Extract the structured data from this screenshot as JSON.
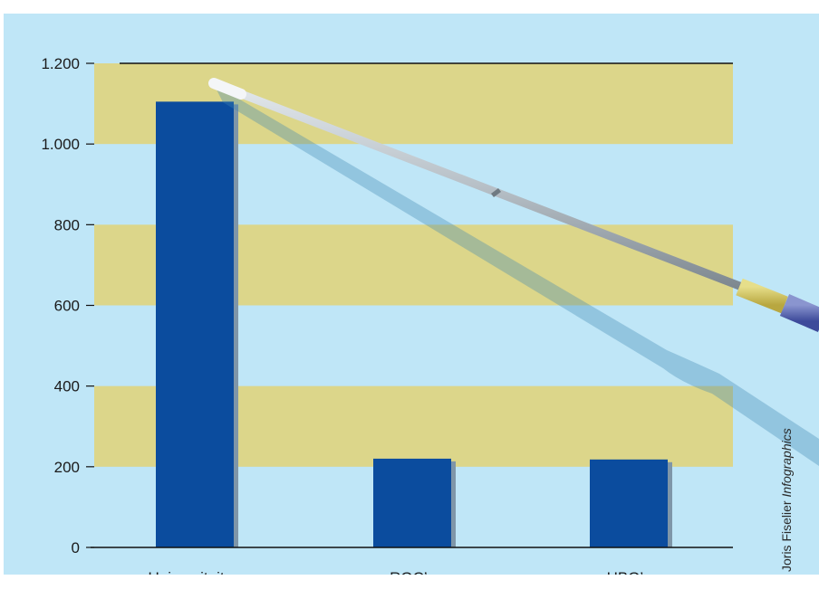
{
  "credit": {
    "author": "Joris Fiselier",
    "agency": "Infographics"
  },
  "colors": {
    "background": "#bfe6f7",
    "band": "#dcd68a",
    "bar": "#0b4c9e",
    "bar_shadow": "#7f96a8",
    "axis": "#111111"
  },
  "chart_data": {
    "type": "bar",
    "title": "",
    "xlabel": "",
    "ylabel": "",
    "categories": [
      "Universiteiten",
      "ROC’s",
      "HBO’s"
    ],
    "values": [
      1105,
      220,
      218
    ],
    "ylim": [
      0,
      1200
    ],
    "yticks": [
      0,
      200,
      400,
      600,
      800,
      1000,
      1200
    ],
    "ytick_labels": [
      "0",
      "200",
      "400",
      "600",
      "800",
      "1.000",
      "1.200"
    ],
    "bands": [
      [
        200,
        400
      ],
      [
        600,
        800
      ],
      [
        1000,
        1200
      ]
    ],
    "grid": false,
    "legend": "none",
    "decoration": "pointer-stick"
  }
}
